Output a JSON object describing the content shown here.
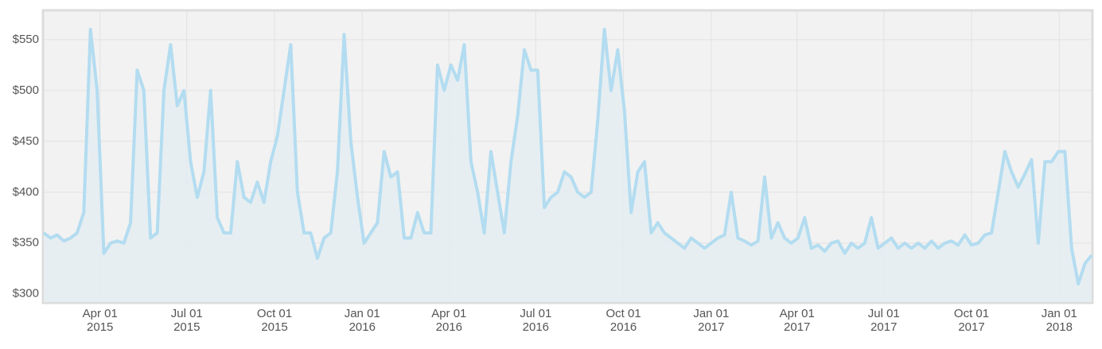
{
  "chart_data": {
    "type": "area",
    "x": [
      "2015-02-01",
      "2015-02-08",
      "2015-02-15",
      "2015-02-22",
      "2015-03-01",
      "2015-03-08",
      "2015-03-15",
      "2015-03-22",
      "2015-03-29",
      "2015-04-05",
      "2015-04-12",
      "2015-04-19",
      "2015-04-26",
      "2015-05-03",
      "2015-05-10",
      "2015-05-17",
      "2015-05-24",
      "2015-05-31",
      "2015-06-07",
      "2015-06-14",
      "2015-06-21",
      "2015-06-28",
      "2015-07-05",
      "2015-07-12",
      "2015-07-19",
      "2015-07-26",
      "2015-08-02",
      "2015-08-09",
      "2015-08-16",
      "2015-08-23",
      "2015-08-30",
      "2015-09-06",
      "2015-09-13",
      "2015-09-20",
      "2015-09-27",
      "2015-10-04",
      "2015-10-11",
      "2015-10-18",
      "2015-10-25",
      "2015-11-01",
      "2015-11-08",
      "2015-11-15",
      "2015-11-22",
      "2015-11-29",
      "2015-12-06",
      "2015-12-13",
      "2015-12-20",
      "2015-12-27",
      "2016-01-03",
      "2016-01-10",
      "2016-01-17",
      "2016-01-24",
      "2016-01-31",
      "2016-02-07",
      "2016-02-14",
      "2016-02-21",
      "2016-02-28",
      "2016-03-06",
      "2016-03-13",
      "2016-03-20",
      "2016-03-27",
      "2016-04-03",
      "2016-04-10",
      "2016-04-17",
      "2016-04-24",
      "2016-05-01",
      "2016-05-08",
      "2016-05-15",
      "2016-05-22",
      "2016-05-29",
      "2016-06-05",
      "2016-06-12",
      "2016-06-19",
      "2016-06-26",
      "2016-07-03",
      "2016-07-10",
      "2016-07-17",
      "2016-07-24",
      "2016-07-31",
      "2016-08-07",
      "2016-08-14",
      "2016-08-21",
      "2016-08-28",
      "2016-09-04",
      "2016-09-11",
      "2016-09-18",
      "2016-09-25",
      "2016-10-02",
      "2016-10-09",
      "2016-10-16",
      "2016-10-23",
      "2016-10-30",
      "2016-11-06",
      "2016-11-13",
      "2016-11-20",
      "2016-11-27",
      "2016-12-04",
      "2016-12-11",
      "2016-12-18",
      "2016-12-25",
      "2017-01-01",
      "2017-01-08",
      "2017-01-15",
      "2017-01-22",
      "2017-01-29",
      "2017-02-05",
      "2017-02-12",
      "2017-02-19",
      "2017-02-26",
      "2017-03-05",
      "2017-03-12",
      "2017-03-19",
      "2017-03-26",
      "2017-04-02",
      "2017-04-09",
      "2017-04-16",
      "2017-04-23",
      "2017-04-30",
      "2017-05-07",
      "2017-05-14",
      "2017-05-21",
      "2017-05-28",
      "2017-06-04",
      "2017-06-11",
      "2017-06-18",
      "2017-06-25",
      "2017-07-02",
      "2017-07-09",
      "2017-07-16",
      "2017-07-23",
      "2017-07-30",
      "2017-08-06",
      "2017-08-13",
      "2017-08-20",
      "2017-08-27",
      "2017-09-03",
      "2017-09-10",
      "2017-09-17",
      "2017-09-24",
      "2017-10-01",
      "2017-10-08",
      "2017-10-15",
      "2017-10-22",
      "2017-10-29",
      "2017-11-05",
      "2017-11-12",
      "2017-11-19",
      "2017-11-26",
      "2017-12-03",
      "2017-12-10",
      "2017-12-17",
      "2017-12-24",
      "2017-12-31",
      "2018-01-07",
      "2018-01-14",
      "2018-01-21",
      "2018-01-28",
      "2018-02-04"
    ],
    "series": [
      {
        "color": "#b3dcf0",
        "fill": "#e4edf2",
        "values": [
          360,
          355,
          358,
          352,
          355,
          360,
          380,
          560,
          500,
          340,
          350,
          352,
          350,
          370,
          520,
          500,
          355,
          360,
          500,
          545,
          485,
          500,
          430,
          395,
          420,
          500,
          375,
          360,
          360,
          430,
          395,
          390,
          410,
          390,
          430,
          455,
          500,
          545,
          400,
          360,
          360,
          335,
          355,
          360,
          420,
          555,
          450,
          395,
          350,
          360,
          370,
          440,
          415,
          420,
          355,
          355,
          380,
          360,
          360,
          525,
          500,
          525,
          510,
          545,
          430,
          400,
          360,
          440,
          400,
          360,
          430,
          475,
          540,
          520,
          520,
          385,
          395,
          400,
          420,
          415,
          400,
          395,
          400,
          470,
          560,
          500,
          540,
          480,
          380,
          420,
          430,
          360,
          370,
          360,
          355,
          350,
          345,
          355,
          350,
          345,
          350,
          355,
          358,
          400,
          355,
          352,
          348,
          352,
          415,
          355,
          370,
          355,
          350,
          355,
          375,
          345,
          348,
          342,
          350,
          352,
          340,
          350,
          345,
          350,
          375,
          345,
          350,
          355,
          345,
          350,
          345,
          350,
          345,
          352,
          345,
          350,
          352,
          348,
          358,
          348,
          350,
          358,
          360,
          400,
          440,
          420,
          405,
          418,
          432,
          350,
          430,
          430,
          440,
          440,
          345,
          310,
          330,
          338
        ]
      }
    ],
    "xlim": [
      "2015-02-01",
      "2018-02-04"
    ],
    "xticks": [
      {
        "value": "2015-04-01",
        "label": [
          "Apr 01",
          "2015"
        ]
      },
      {
        "value": "2015-07-01",
        "label": [
          "Jul 01",
          "2015"
        ]
      },
      {
        "value": "2015-10-01",
        "label": [
          "Oct 01",
          "2015"
        ]
      },
      {
        "value": "2016-01-01",
        "label": [
          "Jan 01",
          "2016"
        ]
      },
      {
        "value": "2016-04-01",
        "label": [
          "Apr 01",
          "2016"
        ]
      },
      {
        "value": "2016-07-01",
        "label": [
          "Jul 01",
          "2016"
        ]
      },
      {
        "value": "2016-10-01",
        "label": [
          "Oct 01",
          "2016"
        ]
      },
      {
        "value": "2017-01-01",
        "label": [
          "Jan 01",
          "2017"
        ]
      },
      {
        "value": "2017-04-01",
        "label": [
          "Apr 01",
          "2017"
        ]
      },
      {
        "value": "2017-07-01",
        "label": [
          "Jul 01",
          "2017"
        ]
      },
      {
        "value": "2017-10-01",
        "label": [
          "Oct 01",
          "2017"
        ]
      },
      {
        "value": "2018-01-01",
        "label": [
          "Jan 01",
          "2018"
        ]
      }
    ],
    "ylim": [
      292,
      578
    ],
    "yticks": [
      {
        "value": 300,
        "label": "$300"
      },
      {
        "value": 350,
        "label": "$350"
      },
      {
        "value": 400,
        "label": "$400"
      },
      {
        "value": 450,
        "label": "$450"
      },
      {
        "value": 500,
        "label": "$500"
      },
      {
        "value": 550,
        "label": "$550"
      }
    ],
    "grid": true
  }
}
